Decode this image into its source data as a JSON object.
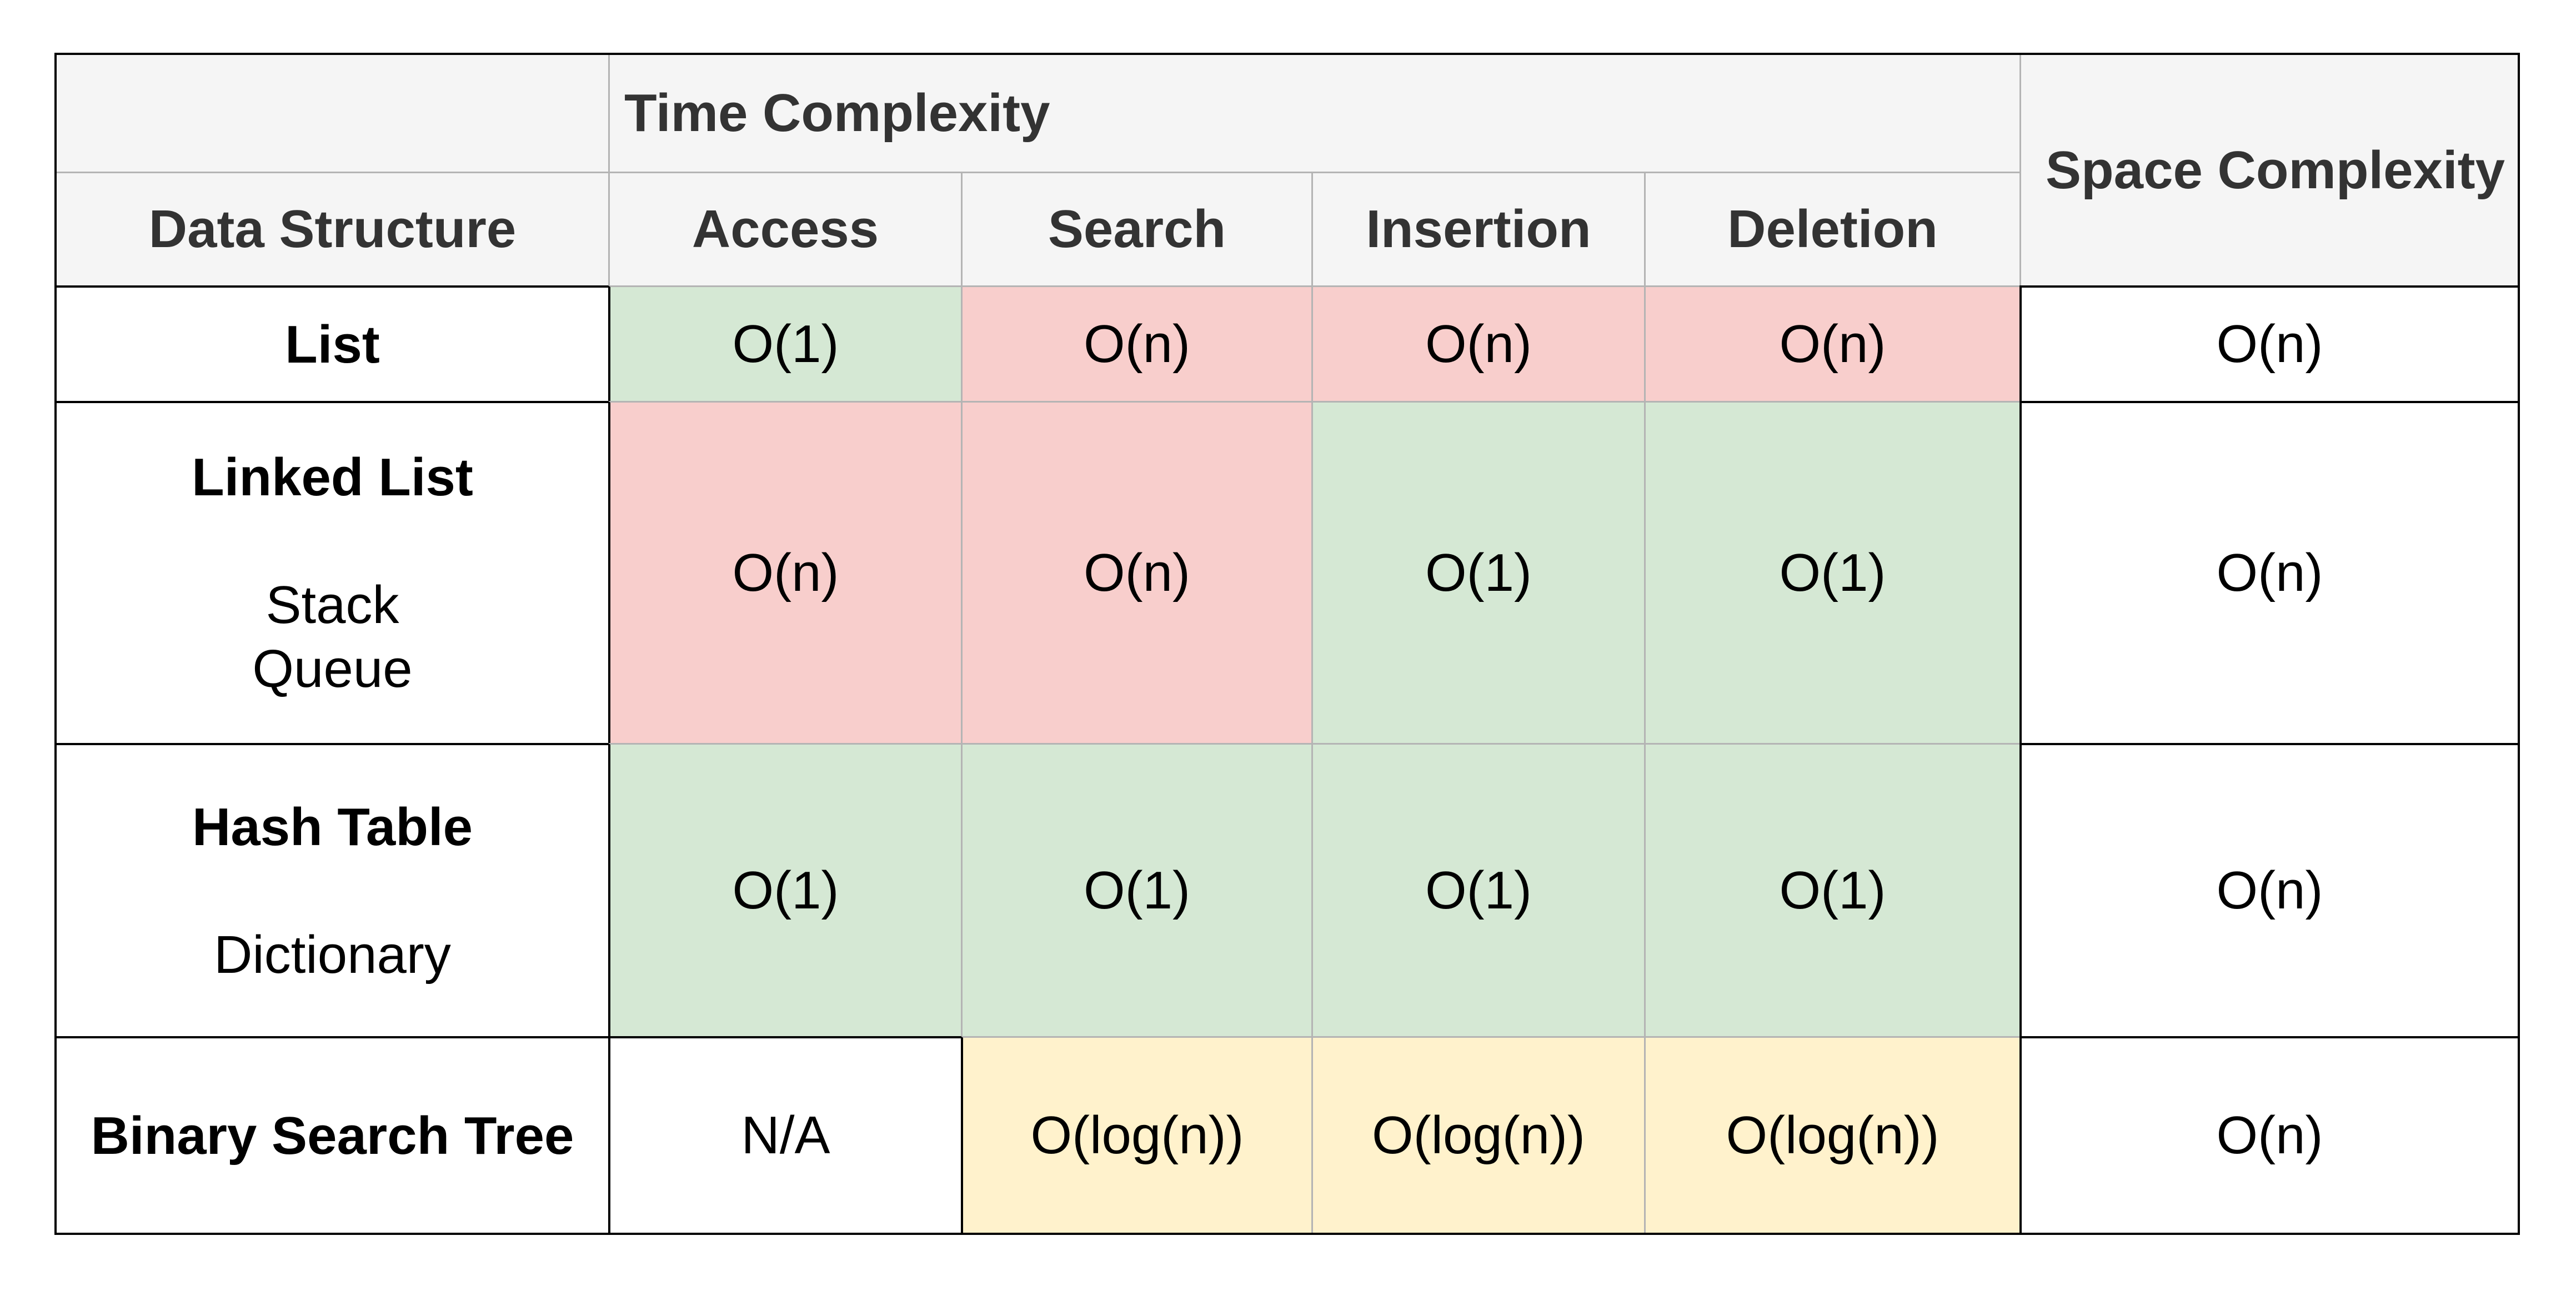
{
  "table": {
    "header": {
      "corner_label": "",
      "time_complexity_label": "Time Complexity",
      "space_complexity_label": "Space Complexity",
      "data_structure_label": "Data Structure",
      "operations": [
        "Access",
        "Search",
        "Insertion",
        "Deletion"
      ]
    },
    "rows": [
      {
        "name": "List",
        "subnames": [],
        "access": {
          "value": "O(1)",
          "color": "green"
        },
        "search": {
          "value": "O(n)",
          "color": "red"
        },
        "insertion": {
          "value": "O(n)",
          "color": "red"
        },
        "deletion": {
          "value": "O(n)",
          "color": "red"
        },
        "space": {
          "value": "O(n)",
          "color": "white"
        }
      },
      {
        "name": "Linked List",
        "subnames": [
          "Stack",
          "Queue"
        ],
        "access": {
          "value": "O(n)",
          "color": "red"
        },
        "search": {
          "value": "O(n)",
          "color": "red"
        },
        "insertion": {
          "value": "O(1)",
          "color": "green"
        },
        "deletion": {
          "value": "O(1)",
          "color": "green"
        },
        "space": {
          "value": "O(n)",
          "color": "white"
        }
      },
      {
        "name": "Hash Table",
        "subnames": [
          "Dictionary"
        ],
        "access": {
          "value": "O(1)",
          "color": "green"
        },
        "search": {
          "value": "O(1)",
          "color": "green"
        },
        "insertion": {
          "value": "O(1)",
          "color": "green"
        },
        "deletion": {
          "value": "O(1)",
          "color": "green"
        },
        "space": {
          "value": "O(n)",
          "color": "white"
        }
      },
      {
        "name": "Binary Search Tree",
        "subnames": [],
        "access": {
          "value": "N/A",
          "color": "white"
        },
        "search": {
          "value": "O(log(n))",
          "color": "yellow"
        },
        "insertion": {
          "value": "O(log(n))",
          "color": "yellow"
        },
        "deletion": {
          "value": "O(log(n))",
          "color": "yellow"
        },
        "space": {
          "value": "O(n)",
          "color": "white"
        }
      }
    ],
    "colors": {
      "green": "#d5e8d4",
      "red": "#f8cecc",
      "yellow": "#fff2cc",
      "header_bg": "#f5f5f5",
      "header_text": "#333333",
      "body_text": "#000000",
      "border_dark": "#000000",
      "border_light": "#b4b4b4",
      "page_bg": "#ffffff"
    }
  }
}
